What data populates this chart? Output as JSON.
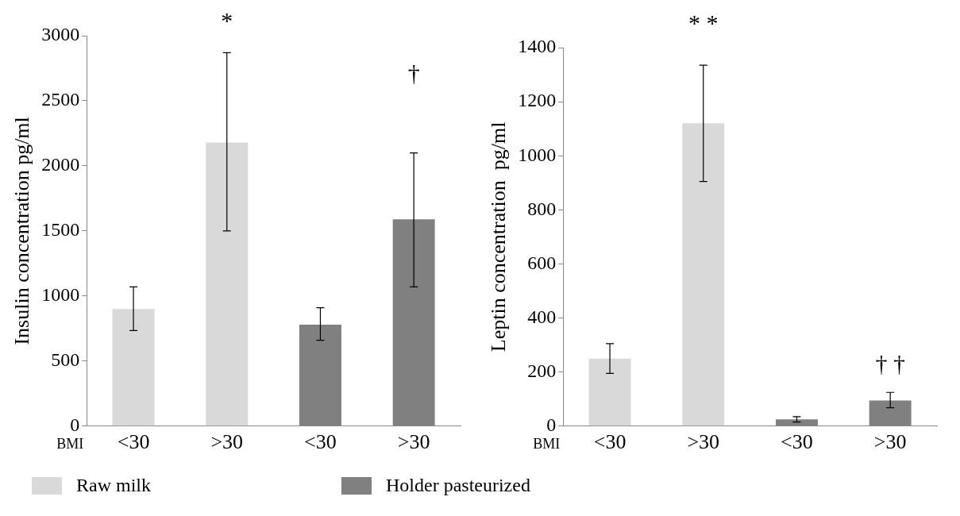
{
  "chart_data": [
    {
      "type": "bar",
      "xlabel": "BMI",
      "ylabel": "Insulin concentration pg/ml",
      "categories": [
        "<30",
        ">30",
        "<30",
        ">30"
      ],
      "series": [
        {
          "name": "Raw milk",
          "color": "#d9d9d9",
          "values": [
            900,
            2180,
            null,
            null
          ],
          "errors": [
            [
              735,
              1070
            ],
            [
              1500,
              2870
            ],
            null,
            null
          ]
        },
        {
          "name": "Holder pasteurized",
          "color": "#808080",
          "values": [
            null,
            null,
            780,
            1590
          ],
          "errors": [
            null,
            null,
            [
              660,
              910
            ],
            [
              1070,
              2100
            ]
          ]
        }
      ],
      "ylim": [
        0,
        3000
      ],
      "yticks": [
        0,
        500,
        1000,
        1500,
        2000,
        2500,
        3000
      ],
      "grid": false,
      "legend": "bottom",
      "annotations": [
        "*",
        "†"
      ]
    },
    {
      "type": "bar",
      "xlabel": "BMI",
      "ylabel": "Leptin concentration  pg/ml",
      "categories": [
        "<30",
        ">30",
        "<30",
        ">30"
      ],
      "series": [
        {
          "color": "#d9d9d9",
          "values": [
            250,
            1120,
            null,
            null
          ],
          "errors": [
            [
              195,
              305
            ],
            [
              905,
              1335
            ],
            null,
            null
          ]
        },
        {
          "color": "#808080",
          "values": [
            null,
            null,
            25,
            95
          ],
          "errors": [
            null,
            null,
            [
              15,
              35
            ],
            [
              68,
              125
            ]
          ]
        }
      ],
      "ylim": [
        0,
        1400
      ],
      "yticks": [
        0,
        200,
        400,
        600,
        800,
        1000,
        1200,
        1400
      ],
      "grid": false,
      "annotations": [
        "* *",
        "† †"
      ]
    }
  ]
}
